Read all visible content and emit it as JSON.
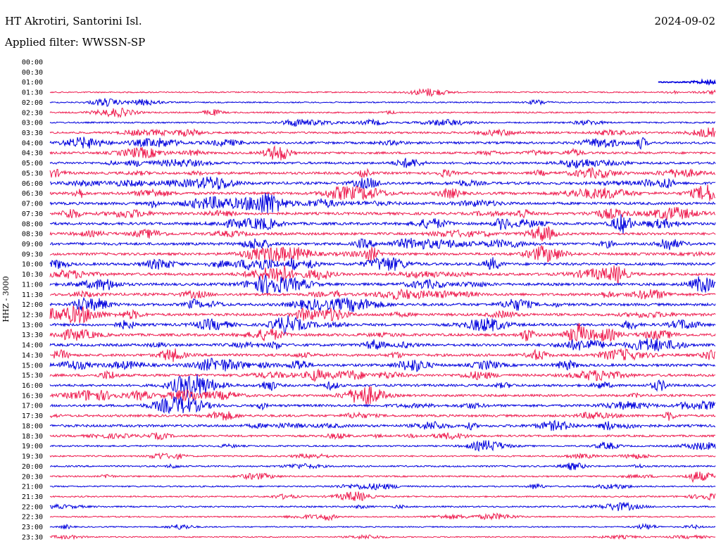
{
  "header": {
    "station": "HT Akrotiri, Santorini Isl.",
    "date": "2024-09-02",
    "filter_label": "Applied filter: WWSSN-SP"
  },
  "chart_data": {
    "type": "line",
    "ylabel": "HHZ - 3000",
    "row_labels": [
      "00:00",
      "00:30",
      "01:00",
      "01:30",
      "02:00",
      "02:30",
      "03:00",
      "03:30",
      "04:00",
      "04:30",
      "05:00",
      "05:30",
      "06:00",
      "06:30",
      "07:00",
      "07:30",
      "08:00",
      "08:30",
      "09:00",
      "09:30",
      "10:00",
      "10:30",
      "11:00",
      "11:30",
      "12:00",
      "12:30",
      "13:00",
      "13:30",
      "14:00",
      "14:30",
      "15:00",
      "15:30",
      "16:00",
      "16:30",
      "17:00",
      "17:30",
      "18:00",
      "18:30",
      "19:00",
      "19:30",
      "20:00",
      "20:30",
      "21:00",
      "21:30",
      "22:00",
      "22:30",
      "23:00",
      "23:30"
    ],
    "first_trace_row": 2,
    "partial_first_trace": true,
    "colors": {
      "odd_rows": "#ee1c4f",
      "even_rows": "#0000dd"
    },
    "activity_levels": [
      0,
      0,
      0,
      0.35,
      0.35,
      0.4,
      0.45,
      0.7,
      0.85,
      0.8,
      0.85,
      0.9,
      1.0,
      1.0,
      1.0,
      1.0,
      1.0,
      0.95,
      1.0,
      0.95,
      1.0,
      1.0,
      1.0,
      1.0,
      1.0,
      1.0,
      1.0,
      1.0,
      1.0,
      1.0,
      1.0,
      0.95,
      0.9,
      0.85,
      0.9,
      0.85,
      0.95,
      0.7,
      0.5,
      0.45,
      0.5,
      0.45,
      0.4,
      0.4,
      0.45,
      0.35,
      0.3,
      0.3
    ]
  }
}
